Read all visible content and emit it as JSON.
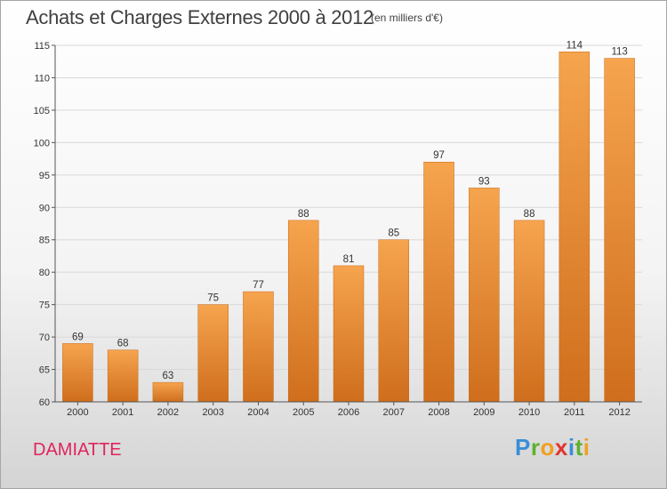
{
  "header": {
    "title": "Achats et Charges Externes 2000 à 2012",
    "subtitle": "(en milliers d'€)"
  },
  "footer": {
    "town": "DAMIATTE",
    "logo_letters": [
      {
        "char": "P",
        "color": "#3a8ed6"
      },
      {
        "char": "r",
        "color": "#5fb130"
      },
      {
        "char": "o",
        "color": "#f0a020"
      },
      {
        "char": "x",
        "color": "#e3342f"
      },
      {
        "char": "i",
        "color": "#3a8ed6"
      },
      {
        "char": "t",
        "color": "#5fb130"
      },
      {
        "char": "i",
        "color": "#f0a020"
      }
    ]
  },
  "colors": {
    "bar_light": "#f6a44e",
    "bar_dark": "#cf6e1c",
    "grid": "#d9d9d9",
    "axis": "#555555"
  },
  "chart_data": {
    "type": "bar",
    "categories": [
      "2000",
      "2001",
      "2002",
      "2003",
      "2004",
      "2005",
      "2006",
      "2007",
      "2008",
      "2009",
      "2010",
      "2011",
      "2012"
    ],
    "values": [
      69,
      68,
      63,
      75,
      77,
      88,
      81,
      85,
      97,
      93,
      88,
      114,
      113
    ],
    "title": "Achats et Charges Externes 2000 à 2012",
    "subtitle": "(en milliers d'€)",
    "xlabel": "",
    "ylabel": "",
    "ylim": [
      60,
      115
    ],
    "yticks": [
      60,
      65,
      70,
      75,
      80,
      85,
      90,
      95,
      100,
      105,
      110,
      115
    ],
    "grid": true,
    "legend": "none"
  }
}
